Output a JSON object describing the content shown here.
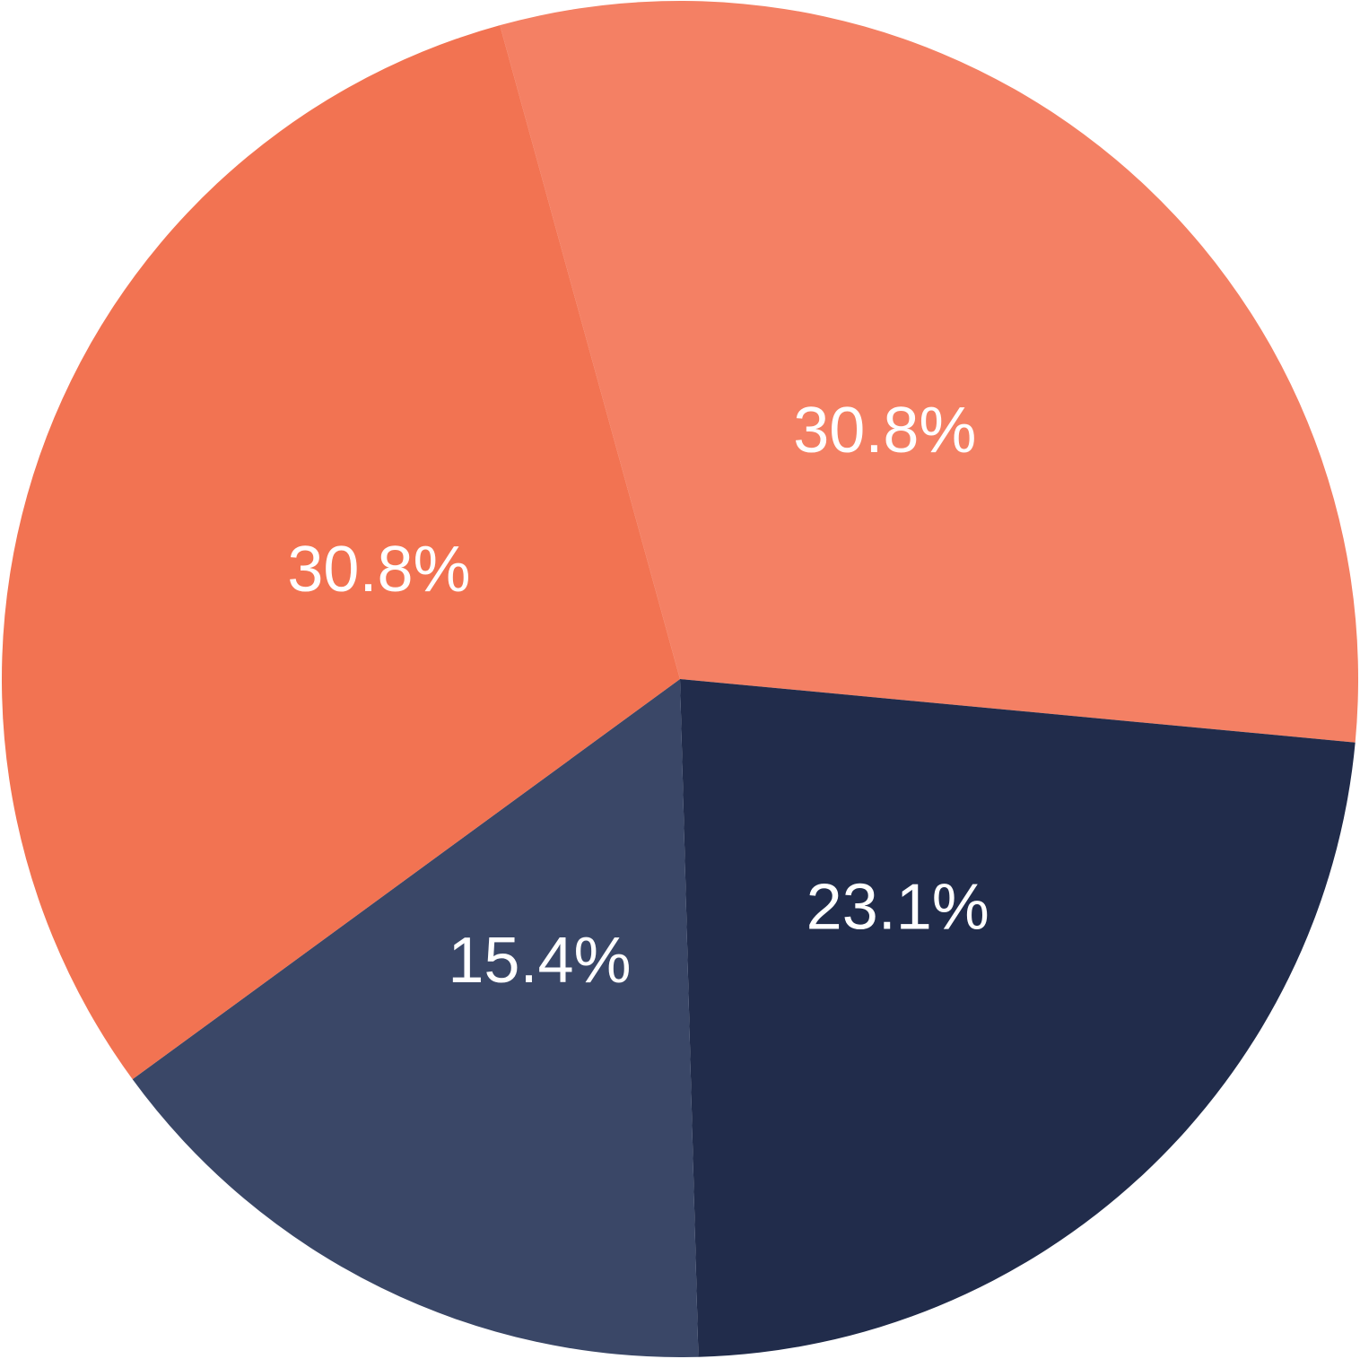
{
  "chart_data": {
    "type": "pie",
    "values": [
      30.8,
      23.1,
      15.4,
      30.8
    ],
    "value_labels": [
      "30.8%",
      "23.1%",
      "15.4%",
      "30.8%"
    ],
    "colors": [
      "#f48064",
      "#212c4b",
      "#3a4767",
      "#f27352"
    ]
  }
}
